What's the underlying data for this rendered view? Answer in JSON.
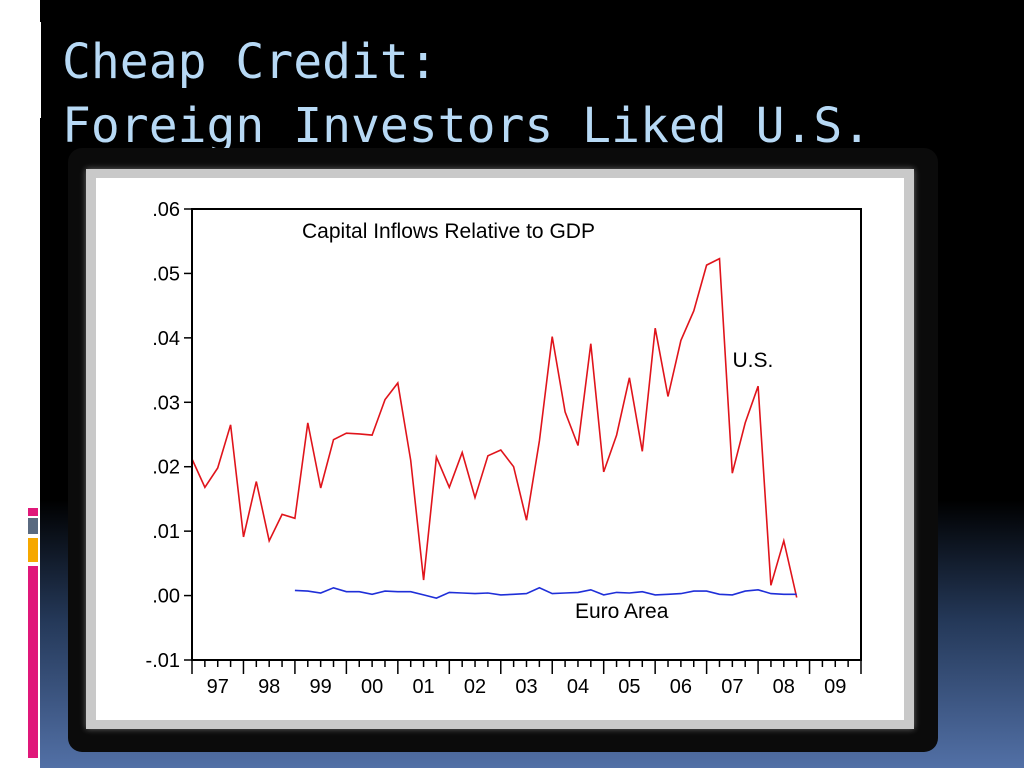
{
  "slide": {
    "title_line1": "Cheap Credit:",
    "title_line2": "Foreign Investors Liked U.S.",
    "colors": {
      "background": "#000000",
      "title": "#b7d9f5",
      "accent_pink": "#e0187a",
      "accent_orange": "#f6a800",
      "accent_gray": "#5a6a80"
    }
  },
  "chart_data": {
    "type": "line",
    "title": "Capital Inflows Relative to GDP",
    "xlabel": "",
    "ylabel": "",
    "ylim": [
      -0.01,
      0.06
    ],
    "yticks": [
      ".06",
      ".05",
      ".04",
      ".03",
      ".02",
      ".01",
      ".00",
      "-.01"
    ],
    "ytick_values": [
      0.06,
      0.05,
      0.04,
      0.03,
      0.02,
      0.01,
      0.0,
      -0.01
    ],
    "xlim": [
      1997.0,
      2010.0
    ],
    "xtick_labels": [
      "97",
      "98",
      "99",
      "00",
      "01",
      "02",
      "03",
      "04",
      "05",
      "06",
      "07",
      "08",
      "09"
    ],
    "xtick_values": [
      1997,
      1998,
      1999,
      2000,
      2001,
      2002,
      2003,
      2004,
      2005,
      2006,
      2007,
      2008,
      2009
    ],
    "grid": false,
    "legend": "none",
    "series": [
      {
        "name": "U.S.",
        "color": "#e0141b",
        "x": [
          1997.0,
          1997.25,
          1997.5,
          1997.75,
          1998.0,
          1998.25,
          1998.5,
          1998.75,
          1999.0,
          1999.25,
          1999.5,
          1999.75,
          2000.0,
          2000.25,
          2000.5,
          2000.75,
          2001.0,
          2001.25,
          2001.5,
          2001.75,
          2002.0,
          2002.25,
          2002.5,
          2002.75,
          2003.0,
          2003.25,
          2003.5,
          2003.75,
          2004.0,
          2004.25,
          2004.5,
          2004.75,
          2005.0,
          2005.25,
          2005.5,
          2005.75,
          2006.0,
          2006.25,
          2006.5,
          2006.75,
          2007.0,
          2007.25,
          2007.5,
          2007.75,
          2008.0,
          2008.25,
          2008.5,
          2008.75
        ],
        "values": [
          0.0212,
          0.0168,
          0.0198,
          0.0265,
          0.0091,
          0.0177,
          0.0085,
          0.0126,
          0.012,
          0.0268,
          0.0167,
          0.0242,
          0.0252,
          0.0251,
          0.0249,
          0.0304,
          0.033,
          0.021,
          0.0024,
          0.0215,
          0.0168,
          0.0222,
          0.0152,
          0.0217,
          0.0226,
          0.02,
          0.0117,
          0.024,
          0.0402,
          0.0285,
          0.0233,
          0.0391,
          0.0192,
          0.0249,
          0.0338,
          0.0224,
          0.0415,
          0.0309,
          0.0396,
          0.0442,
          0.0513,
          0.0523,
          0.019,
          0.0268,
          0.0325,
          0.0016,
          0.0085,
          -0.0003
        ]
      },
      {
        "name": "Euro Area",
        "color": "#1f2fd8",
        "x": [
          1999.0,
          1999.25,
          1999.5,
          1999.75,
          2000.0,
          2000.25,
          2000.5,
          2000.75,
          2001.0,
          2001.25,
          2001.5,
          2001.75,
          2002.0,
          2002.25,
          2002.5,
          2002.75,
          2003.0,
          2003.25,
          2003.5,
          2003.75,
          2004.0,
          2004.25,
          2004.5,
          2004.75,
          2005.0,
          2005.25,
          2005.5,
          2005.75,
          2006.0,
          2006.25,
          2006.5,
          2006.75,
          2007.0,
          2007.25,
          2007.5,
          2007.75,
          2008.0,
          2008.25,
          2008.5,
          2008.75
        ],
        "values": [
          0.0008,
          0.0007,
          0.0004,
          0.0012,
          0.0006,
          0.0006,
          0.0002,
          0.0007,
          0.0006,
          0.0006,
          0.0001,
          -0.0004,
          0.0005,
          0.0004,
          0.0003,
          0.0004,
          0.0001,
          0.0002,
          0.0003,
          0.0012,
          0.0003,
          0.0004,
          0.0005,
          0.0009,
          0.0001,
          0.0005,
          0.0004,
          0.0006,
          0.0001,
          0.0002,
          0.0003,
          0.0007,
          0.0007,
          0.0002,
          0.0001,
          0.0007,
          0.0009,
          0.0003,
          0.0002,
          0.0002
        ]
      }
    ],
    "annotations": [
      {
        "text": "Capital Inflows Relative to GDP",
        "x": 2001.0,
        "y": 0.0555
      },
      {
        "text": "U.S.",
        "x": 2007.9,
        "y": 0.0355
      },
      {
        "text": "Euro Area",
        "x": 2005.35,
        "y": -0.0035
      }
    ]
  }
}
